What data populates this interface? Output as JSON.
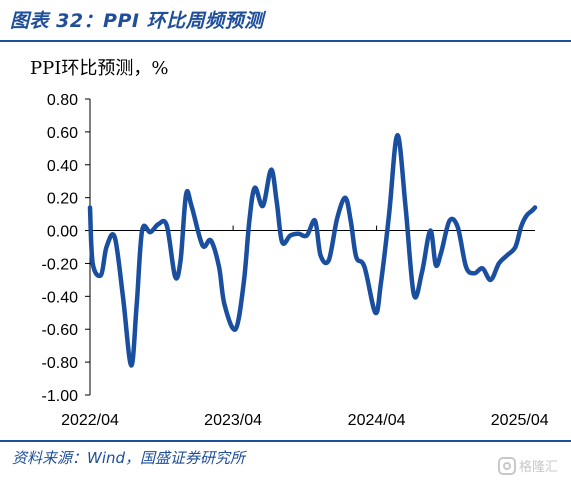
{
  "figure": {
    "title": "图表 32：PPI 环比周频预测",
    "source": "资料来源：Wind，国盛证券研究所",
    "watermark": "格隆汇"
  },
  "colors": {
    "accent": "#1f4e9a",
    "series_line": "#1a4fa0"
  },
  "chart_data": {
    "type": "line",
    "title": "",
    "ylabel": "PPI环比预测，%",
    "xlabel": "",
    "ylim": [
      -1.0,
      0.8
    ],
    "yticks": [
      0.8,
      0.6,
      0.4,
      0.2,
      0.0,
      -0.2,
      -0.4,
      -0.6,
      -0.8,
      -1.0
    ],
    "ytick_labels": [
      "0.80",
      "0.60",
      "0.40",
      "0.20",
      "0.00",
      "-0.20",
      "-0.40",
      "-0.60",
      "-0.80",
      "-1.00"
    ],
    "xlim": [
      "2022-04-01",
      "2025-05-10"
    ],
    "xticks": [
      "2022-04-01",
      "2023-04-01",
      "2024-04-01",
      "2025-04-01"
    ],
    "xtick_labels": [
      "2022/04",
      "2023/04",
      "2024/04",
      "2025/04"
    ],
    "grid": false,
    "legend": "none",
    "series": [
      {
        "x": [
          "2022-04-01",
          "2022-04-08",
          "2022-04-29",
          "2022-05-13",
          "2022-06-03",
          "2022-06-24",
          "2022-07-15",
          "2022-07-29",
          "2022-08-12",
          "2022-09-02",
          "2022-09-23",
          "2022-10-14",
          "2022-11-04",
          "2022-11-18",
          "2022-12-02",
          "2022-12-16",
          "2023-01-13",
          "2023-02-03",
          "2023-02-24",
          "2023-03-10",
          "2023-04-07",
          "2023-04-28",
          "2023-05-12",
          "2023-05-26",
          "2023-06-16",
          "2023-07-07",
          "2023-07-21",
          "2023-08-04",
          "2023-08-25",
          "2023-09-15",
          "2023-10-06",
          "2023-10-27",
          "2023-11-10",
          "2023-12-01",
          "2023-12-22",
          "2024-01-12",
          "2024-01-26",
          "2024-02-09",
          "2024-03-01",
          "2024-03-29",
          "2024-04-12",
          "2024-05-03",
          "2024-05-24",
          "2024-06-14",
          "2024-07-05",
          "2024-07-26",
          "2024-08-16",
          "2024-08-30",
          "2024-09-13",
          "2024-10-04",
          "2024-10-25",
          "2024-11-15",
          "2024-12-06",
          "2024-12-27",
          "2025-01-17",
          "2025-02-07",
          "2025-02-28",
          "2025-03-21",
          "2025-04-04",
          "2025-04-18",
          "2025-05-02",
          "2025-05-10"
        ],
        "y": [
          0.14,
          -0.2,
          -0.27,
          -0.1,
          -0.04,
          -0.4,
          -0.82,
          -0.45,
          0.0,
          -0.01,
          0.04,
          0.03,
          -0.28,
          -0.18,
          0.22,
          0.15,
          -0.09,
          -0.06,
          -0.22,
          -0.45,
          -0.6,
          -0.32,
          0.05,
          0.26,
          0.15,
          0.37,
          0.18,
          -0.07,
          -0.03,
          -0.02,
          -0.03,
          0.06,
          -0.15,
          -0.18,
          0.07,
          0.2,
          0.06,
          -0.16,
          -0.22,
          -0.5,
          -0.32,
          0.1,
          0.58,
          0.14,
          -0.39,
          -0.25,
          0.0,
          -0.21,
          -0.13,
          0.06,
          0.02,
          -0.22,
          -0.26,
          -0.23,
          -0.3,
          -0.2,
          -0.15,
          -0.1,
          0.02,
          0.09,
          0.12,
          0.14
        ]
      }
    ]
  }
}
